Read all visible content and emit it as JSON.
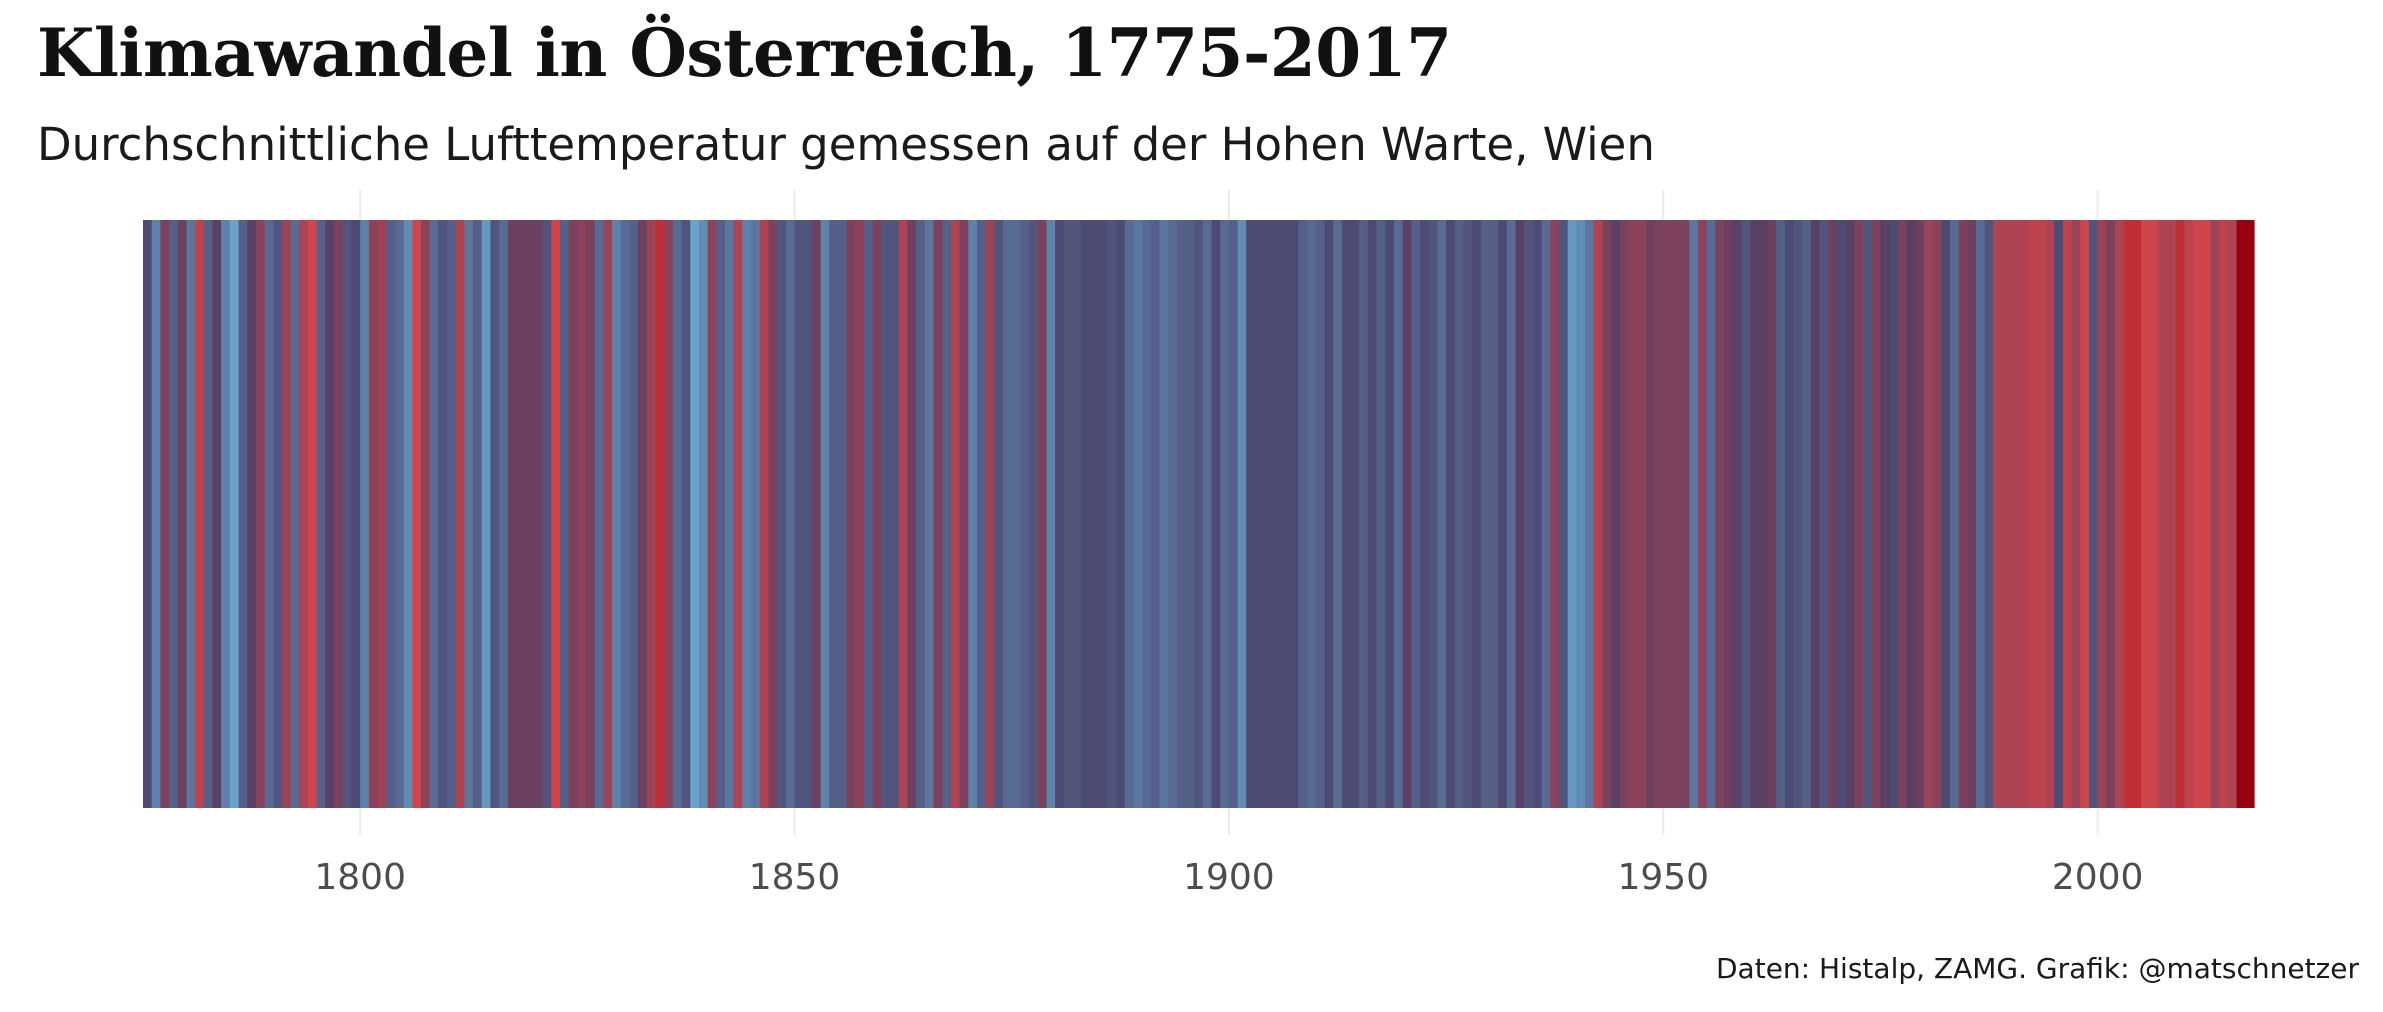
{
  "title": "Klimawandel in Österreich, 1775-2017",
  "subtitle": "Durchschnittliche Lufttemperatur gemessen auf der Hohen Warte, Wien",
  "caption": "Daten: Histalp, ZAMG. Grafik: @matschnetzer",
  "colors": {
    "cold": "#6baed6",
    "neutral": "#4a3f68",
    "warm": "#d6454a",
    "hot": "#99000d",
    "grid": "#ebebeb",
    "tick_text": "#4d4d4d"
  },
  "chart_data": {
    "type": "heatmap",
    "xlim": [
      1775,
      2017
    ],
    "x_ticks": [
      1800,
      1850,
      1900,
      1950,
      2000
    ],
    "x_tick_labels": [
      "1800",
      "1850",
      "1900",
      "1950",
      "2000"
    ],
    "grid": "vertical-major",
    "legend": "none",
    "value_scale": "relative temperature anomaly (-1 cold … +1 hot)",
    "years": [
      1775,
      1776,
      1777,
      1778,
      1779,
      1780,
      1781,
      1782,
      1783,
      1784,
      1785,
      1786,
      1787,
      1788,
      1789,
      1790,
      1791,
      1792,
      1793,
      1794,
      1795,
      1796,
      1797,
      1798,
      1799,
      1800,
      1801,
      1802,
      1803,
      1804,
      1805,
      1806,
      1807,
      1808,
      1809,
      1810,
      1811,
      1812,
      1813,
      1814,
      1815,
      1816,
      1817,
      1818,
      1819,
      1820,
      1821,
      1822,
      1823,
      1824,
      1825,
      1826,
      1827,
      1828,
      1829,
      1830,
      1831,
      1832,
      1833,
      1834,
      1835,
      1836,
      1837,
      1838,
      1839,
      1840,
      1841,
      1842,
      1843,
      1844,
      1845,
      1846,
      1847,
      1848,
      1849,
      1850,
      1851,
      1852,
      1853,
      1854,
      1855,
      1856,
      1857,
      1858,
      1859,
      1860,
      1861,
      1862,
      1863,
      1864,
      1865,
      1866,
      1867,
      1868,
      1869,
      1870,
      1871,
      1872,
      1873,
      1874,
      1875,
      1876,
      1877,
      1878,
      1879,
      1880,
      1881,
      1882,
      1883,
      1884,
      1885,
      1886,
      1887,
      1888,
      1889,
      1890,
      1891,
      1892,
      1893,
      1894,
      1895,
      1896,
      1897,
      1898,
      1899,
      1900,
      1901,
      1902,
      1903,
      1904,
      1905,
      1906,
      1907,
      1908,
      1909,
      1910,
      1911,
      1912,
      1913,
      1914,
      1915,
      1916,
      1917,
      1918,
      1919,
      1920,
      1921,
      1922,
      1923,
      1924,
      1925,
      1926,
      1927,
      1928,
      1929,
      1930,
      1931,
      1932,
      1933,
      1934,
      1935,
      1936,
      1937,
      1938,
      1939,
      1940,
      1941,
      1942,
      1943,
      1944,
      1945,
      1946,
      1947,
      1948,
      1949,
      1950,
      1951,
      1952,
      1953,
      1954,
      1955,
      1956,
      1957,
      1958,
      1959,
      1960,
      1961,
      1962,
      1963,
      1964,
      1965,
      1966,
      1967,
      1968,
      1969,
      1970,
      1971,
      1972,
      1973,
      1974,
      1975,
      1976,
      1977,
      1978,
      1979,
      1980,
      1981,
      1982,
      1983,
      1984,
      1985,
      1986,
      1987,
      1988,
      1989,
      1990,
      1991,
      1992,
      1993,
      1994,
      1995,
      1996,
      1997,
      1998,
      1999,
      2000,
      2001,
      2002,
      2003,
      2004,
      2005,
      2006,
      2007,
      2008,
      2009,
      2010,
      2011,
      2012,
      2013,
      2014,
      2015,
      2016,
      2017
    ],
    "anomaly": [
      -0.1,
      -0.6,
      0.3,
      -0.3,
      0.2,
      -0.5,
      0.7,
      -0.3,
      0.1,
      -0.6,
      -0.9,
      -0.3,
      0.1,
      0.4,
      -0.4,
      -0.2,
      0.5,
      -0.4,
      0.6,
      0.8,
      -0.3,
      0.1,
      0.3,
      -0.2,
      -0.1,
      -0.6,
      0.4,
      0.5,
      -0.3,
      -0.4,
      -0.7,
      0.8,
      0.4,
      -0.4,
      -0.2,
      -0.3,
      0.6,
      -0.5,
      -0.3,
      -0.8,
      -0.2,
      -0.4,
      0.2,
      0.2,
      0.2,
      0.2,
      -0.2,
      0.8,
      -0.3,
      0.3,
      0.4,
      0.3,
      -0.4,
      0.5,
      -0.6,
      -0.4,
      -0.3,
      0.2,
      0.5,
      0.9,
      0.4,
      -0.4,
      -0.2,
      -0.9,
      -0.7,
      0.4,
      -0.3,
      -0.5,
      0.6,
      -0.6,
      -0.5,
      0.6,
      0.3,
      -0.2,
      -0.4,
      -0.2,
      -0.2,
      0.2,
      -0.6,
      -0.3,
      -0.3,
      0.3,
      0.4,
      -0.3,
      0.3,
      -0.2,
      -0.2,
      0.6,
      0.2,
      -0.3,
      -0.5,
      0.3,
      -0.3,
      0.6,
      0.3,
      -0.6,
      -0.3,
      0.5,
      -0.2,
      -0.4,
      -0.4,
      -0.3,
      -0.2,
      0.3,
      -0.6,
      -0.1,
      -0.2,
      -0.2,
      -0.1,
      -0.1,
      -0.1,
      -0.2,
      -0.1,
      -0.4,
      -0.5,
      -0.4,
      -0.3,
      -0.5,
      -0.4,
      -0.3,
      -0.3,
      -0.2,
      -0.4,
      -0.1,
      -0.4,
      -0.3,
      -0.7,
      -0.1,
      -0.1,
      -0.1,
      -0.1,
      -0.1,
      -0.1,
      -0.3,
      -0.4,
      -0.3,
      -0.1,
      -0.4,
      -0.1,
      -0.1,
      -0.3,
      -0.1,
      -0.3,
      -0.1,
      -0.4,
      0.1,
      -0.3,
      -0.1,
      -0.2,
      -0.4,
      -0.1,
      -0.3,
      -0.2,
      -0.1,
      -0.3,
      -0.3,
      -0.1,
      -0.4,
      0.1,
      -0.2,
      -0.1,
      -0.4,
      0.4,
      -0.2,
      -0.8,
      -0.7,
      -0.5,
      0.6,
      0.3,
      0.1,
      0.3,
      0.4,
      0.4,
      0.2,
      0.3,
      0.3,
      0.3,
      0.3,
      -0.5,
      0.4,
      -0.4,
      0.3,
      0.2,
      0.1,
      -0.2,
      0.1,
      0.1,
      0.2,
      -0.3,
      -0.1,
      -0.2,
      -0.3,
      0.1,
      -0.2,
      0.2,
      -0.1,
      0.1,
      0.3,
      -0.2,
      0.3,
      0.1,
      -0.1,
      0.3,
      0.1,
      0.2,
      0.5,
      0.4,
      -0.1,
      -0.4,
      0.3,
      0.2,
      -0.4,
      -0.2,
      0.6,
      0.6,
      0.6,
      0.6,
      0.7,
      0.7,
      0.6,
      -0.1,
      0.7,
      0.5,
      0.8,
      -0.2,
      0.5,
      0.3,
      0.6,
      0.9,
      0.9,
      0.8,
      0.8,
      0.6,
      0.6,
      0.9,
      0.7,
      0.8,
      0.8,
      0.5,
      0.7,
      0.6,
      1.0,
      1.0,
      1.0,
      0.9,
      0.9
    ]
  }
}
